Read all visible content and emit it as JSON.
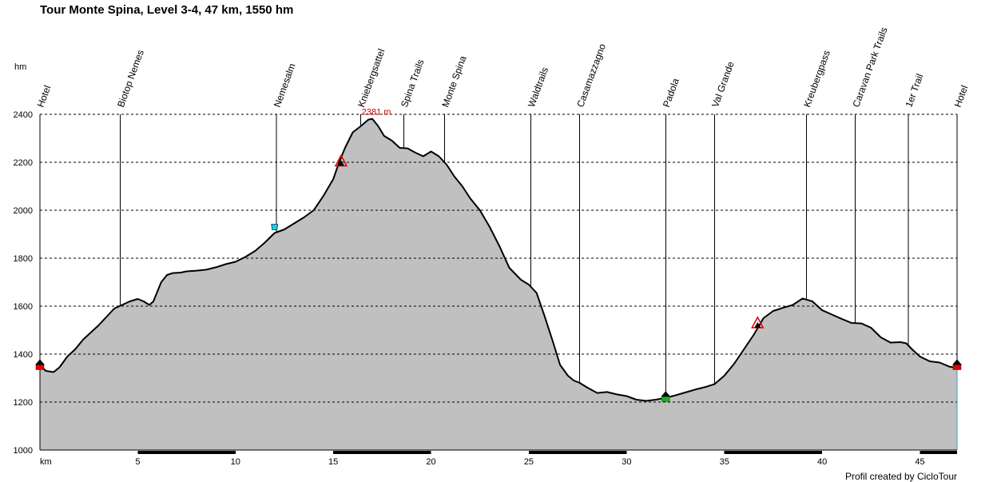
{
  "chart_data": {
    "type": "area",
    "title": "Tour Monte Spina, Level 3-4, 47 km, 1550 hm",
    "ylabel": "hm",
    "xlabel": "km",
    "xlim": [
      0,
      46.9
    ],
    "ylim": [
      1000,
      2400
    ],
    "x_ticks": [
      5,
      10,
      15,
      20,
      25,
      30,
      35,
      40,
      45
    ],
    "y_ticks": [
      1000,
      1200,
      1400,
      1600,
      1800,
      2000,
      2200,
      2400
    ],
    "grid": true,
    "colors": {
      "fill": "#c0c0c0",
      "line": "#000000",
      "grid": "#000000",
      "max_label": "#cc0000"
    },
    "max_point": {
      "x": 17.0,
      "y": 2381,
      "label": "2381 m"
    },
    "profile": {
      "x": [
        0,
        0.3,
        0.7,
        1.0,
        1.4,
        1.8,
        2.2,
        2.6,
        3.0,
        3.4,
        3.8,
        4.2,
        4.6,
        5.0,
        5.3,
        5.6,
        5.8,
        6.0,
        6.2,
        6.5,
        6.8,
        7.2,
        7.5,
        8.0,
        8.5,
        9.0,
        9.5,
        10.0,
        10.5,
        11.0,
        11.5,
        12.0,
        12.5,
        13.0,
        13.5,
        14.0,
        14.5,
        15.0,
        15.3,
        15.6,
        16.0,
        16.4,
        16.8,
        17.0,
        17.3,
        17.6,
        18.0,
        18.4,
        18.8,
        19.2,
        19.6,
        20.0,
        20.4,
        20.8,
        21.2,
        21.6,
        22.0,
        22.5,
        23.0,
        23.5,
        24.0,
        24.3,
        24.6,
        25.0,
        25.4,
        25.8,
        26.2,
        26.6,
        27.0,
        27.3,
        27.6,
        28.0,
        28.5,
        29.0,
        29.5,
        30.0,
        30.5,
        31.0,
        31.5,
        32.0,
        32.5,
        33.0,
        33.5,
        34.0,
        34.5,
        35.0,
        35.5,
        36.0,
        36.5,
        37.0,
        37.5,
        38.0,
        38.5,
        39.0,
        39.5,
        40.0,
        40.5,
        41.0,
        41.5,
        42.0,
        42.5,
        43.0,
        43.5,
        44.0,
        44.3,
        44.6,
        45.0,
        45.5,
        46.0,
        46.5,
        46.9
      ],
      "y": [
        1355,
        1330,
        1325,
        1345,
        1390,
        1420,
        1460,
        1490,
        1520,
        1555,
        1590,
        1605,
        1620,
        1630,
        1620,
        1605,
        1620,
        1660,
        1700,
        1730,
        1738,
        1740,
        1745,
        1748,
        1752,
        1762,
        1775,
        1785,
        1805,
        1830,
        1865,
        1905,
        1920,
        1945,
        1970,
        2000,
        2060,
        2130,
        2200,
        2260,
        2325,
        2350,
        2378,
        2381,
        2350,
        2310,
        2290,
        2260,
        2258,
        2240,
        2225,
        2245,
        2225,
        2190,
        2140,
        2100,
        2050,
        2000,
        1930,
        1850,
        1760,
        1735,
        1710,
        1690,
        1655,
        1560,
        1460,
        1355,
        1310,
        1290,
        1280,
        1260,
        1238,
        1242,
        1232,
        1225,
        1210,
        1205,
        1210,
        1218,
        1228,
        1240,
        1252,
        1262,
        1275,
        1310,
        1360,
        1420,
        1480,
        1550,
        1580,
        1593,
        1605,
        1632,
        1620,
        1583,
        1565,
        1547,
        1530,
        1528,
        1510,
        1470,
        1448,
        1450,
        1445,
        1420,
        1390,
        1370,
        1365,
        1348,
        1342
      ]
    },
    "waypoints": [
      {
        "x": 0.0,
        "label": "Hotel"
      },
      {
        "x": 4.1,
        "label": "Biotop Nemes"
      },
      {
        "x": 12.1,
        "label": "Nemesalm"
      },
      {
        "x": 16.4,
        "label": "Kniebergsattel"
      },
      {
        "x": 18.6,
        "label": "Spina Trails"
      },
      {
        "x": 20.7,
        "label": "Monte Spina"
      },
      {
        "x": 25.1,
        "label": "Waldtrails"
      },
      {
        "x": 27.6,
        "label": "Casamazzagno"
      },
      {
        "x": 32.0,
        "label": "Padola"
      },
      {
        "x": 34.5,
        "label": "Val Grande"
      },
      {
        "x": 39.2,
        "label": "Kreubergpass"
      },
      {
        "x": 41.7,
        "label": "Caravan Park Trails"
      },
      {
        "x": 44.4,
        "label": "1er Trail"
      },
      {
        "x": 46.9,
        "label": "Hotel"
      }
    ],
    "markers": [
      {
        "x": 0.0,
        "y": 1355,
        "icon": "hotel-icon"
      },
      {
        "x": 12.0,
        "y": 1925,
        "icon": "water-icon"
      },
      {
        "x": 15.4,
        "y": 2205,
        "icon": "summit-icon"
      },
      {
        "x": 32.0,
        "y": 1222,
        "icon": "town-icon"
      },
      {
        "x": 36.7,
        "y": 1530,
        "icon": "summit-icon"
      },
      {
        "x": 46.9,
        "y": 1355,
        "icon": "hotel-icon"
      }
    ]
  },
  "credit": "Profil created by CicloTour"
}
